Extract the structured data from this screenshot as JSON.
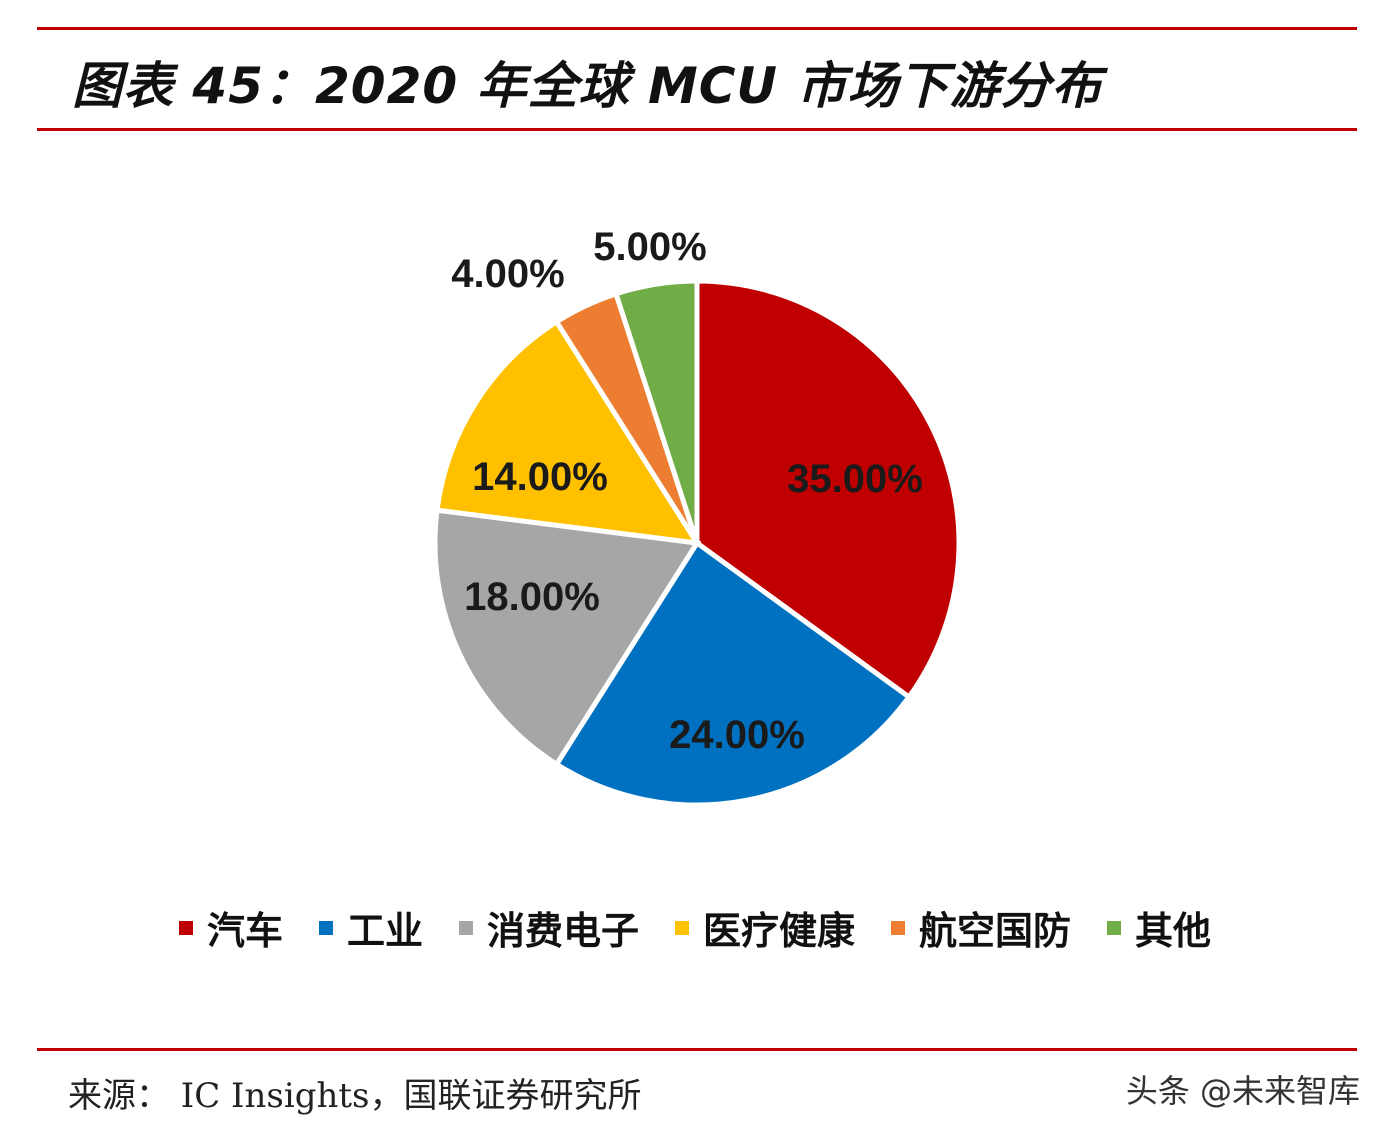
{
  "title": "图表 45：2020 年全球 MCU 市场下游分布",
  "source": "来源： IC Insights，国联证券研究所",
  "watermark": "头条 @未来智库",
  "chart_data": {
    "type": "pie",
    "title": "",
    "legend_position": "bottom",
    "slices": [
      {
        "name": "汽车",
        "value": 35.0,
        "label": "35.00%",
        "color": "#c00000"
      },
      {
        "name": "工业",
        "value": 24.0,
        "label": "24.00%",
        "color": "#0070c0"
      },
      {
        "name": "消费电子",
        "value": 18.0,
        "label": "18.00%",
        "color": "#a6a6a6"
      },
      {
        "name": "医疗健康",
        "value": 14.0,
        "label": "14.00%",
        "color": "#ffc000"
      },
      {
        "name": "航空国防",
        "value": 4.0,
        "label": "4.00%",
        "color": "#ed7d31"
      },
      {
        "name": "其他",
        "value": 5.0,
        "label": "5.00%",
        "color": "#70ad47"
      }
    ]
  }
}
